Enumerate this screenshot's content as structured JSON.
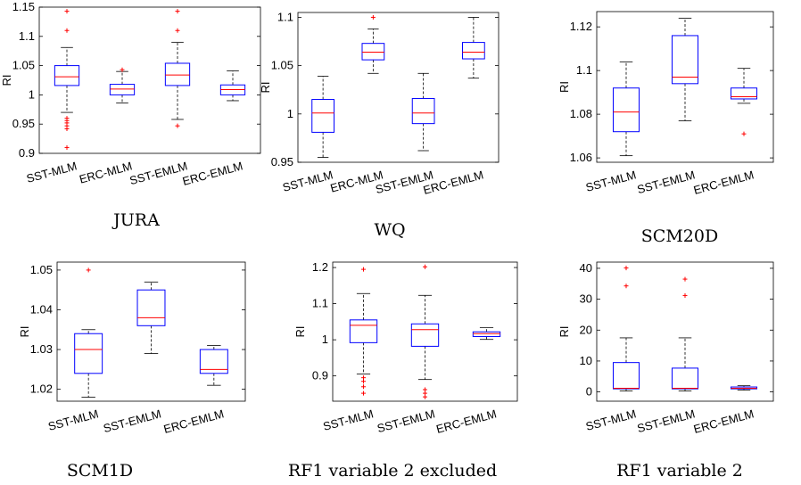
{
  "chart_data": [
    {
      "type": "box",
      "title": "JURA",
      "ylabel": "RI",
      "ylim": [
        0.9,
        1.15
      ],
      "yticks": [
        "0.9",
        "0.95",
        "1",
        "1.05",
        "1.1",
        "1.15"
      ],
      "categories": [
        "SST-MLM",
        "ERC-MLM",
        "SST-EMLM",
        "ERC-EMLM"
      ],
      "boxes": [
        {
          "lower_whisker": 0.97,
          "q1": 1.016,
          "median": 1.031,
          "q3": 1.05,
          "upper_whisker": 1.081,
          "outliers": [
            0.91,
            0.942,
            0.947,
            0.952,
            0.956,
            0.96,
            1.11,
            1.143
          ]
        },
        {
          "lower_whisker": 0.986,
          "q1": 1.0,
          "median": 1.01,
          "q3": 1.018,
          "upper_whisker": 1.04,
          "outliers": [
            1.043
          ]
        },
        {
          "lower_whisker": 0.958,
          "q1": 1.016,
          "median": 1.034,
          "q3": 1.054,
          "upper_whisker": 1.09,
          "outliers": [
            0.947,
            1.11,
            1.143
          ]
        },
        {
          "lower_whisker": 0.99,
          "q1": 1.0,
          "median": 1.009,
          "q3": 1.017,
          "upper_whisker": 1.041,
          "outliers": []
        }
      ]
    },
    {
      "type": "box",
      "title": "WQ",
      "ylabel": "RI",
      "ylim": [
        0.95,
        1.105
      ],
      "yticks": [
        "0.95",
        "1",
        "1.05",
        "1.1"
      ],
      "categories": [
        "SST-MLM",
        "ERC-MLM",
        "SST-EMLM",
        "ERC-EMLM"
      ],
      "boxes": [
        {
          "lower_whisker": 0.955,
          "q1": 0.981,
          "median": 1.001,
          "q3": 1.015,
          "upper_whisker": 1.039,
          "outliers": []
        },
        {
          "lower_whisker": 1.042,
          "q1": 1.056,
          "median": 1.064,
          "q3": 1.073,
          "upper_whisker": 1.088,
          "outliers": [
            1.1
          ]
        },
        {
          "lower_whisker": 0.962,
          "q1": 0.99,
          "median": 1.001,
          "q3": 1.016,
          "upper_whisker": 1.042,
          "outliers": []
        },
        {
          "lower_whisker": 1.037,
          "q1": 1.057,
          "median": 1.064,
          "q3": 1.074,
          "upper_whisker": 1.1,
          "outliers": []
        }
      ]
    },
    {
      "type": "box",
      "title": "SCM20D",
      "ylabel": "RI",
      "ylim": [
        1.058,
        1.127
      ],
      "yticks": [
        "1.06",
        "1.08",
        "1.1",
        "1.12"
      ],
      "categories": [
        "SST-MLM",
        "SST-EMLM",
        "ERC-EMLM"
      ],
      "boxes": [
        {
          "lower_whisker": 1.061,
          "q1": 1.072,
          "median": 1.081,
          "q3": 1.092,
          "upper_whisker": 1.104,
          "outliers": []
        },
        {
          "lower_whisker": 1.077,
          "q1": 1.094,
          "median": 1.097,
          "q3": 1.116,
          "upper_whisker": 1.124,
          "outliers": []
        },
        {
          "lower_whisker": 1.085,
          "q1": 1.087,
          "median": 1.088,
          "q3": 1.092,
          "upper_whisker": 1.101,
          "outliers": [
            1.071
          ]
        }
      ]
    },
    {
      "type": "box",
      "title": "SCM1D",
      "ylabel": "RI",
      "ylim": [
        1.017,
        1.052
      ],
      "yticks": [
        "1.02",
        "1.03",
        "1.04",
        "1.05"
      ],
      "categories": [
        "SST-MLM",
        "SST-EMLM",
        "ERC-EMLM"
      ],
      "boxes": [
        {
          "lower_whisker": 1.018,
          "q1": 1.024,
          "median": 1.03,
          "q3": 1.034,
          "upper_whisker": 1.035,
          "outliers": [
            1.05
          ]
        },
        {
          "lower_whisker": 1.029,
          "q1": 1.036,
          "median": 1.038,
          "q3": 1.045,
          "upper_whisker": 1.047,
          "outliers": []
        },
        {
          "lower_whisker": 1.021,
          "q1": 1.024,
          "median": 1.025,
          "q3": 1.03,
          "upper_whisker": 1.031,
          "outliers": []
        }
      ]
    },
    {
      "type": "box",
      "title": "RF1 variable 2 excluded",
      "ylabel": "RI",
      "ylim": [
        0.83,
        1.215
      ],
      "yticks": [
        "0.9",
        "1",
        "1.1",
        "1.2"
      ],
      "categories": [
        "SST-MLM",
        "SST-EMLM",
        "ERC-EMLM"
      ],
      "boxes": [
        {
          "lower_whisker": 0.905,
          "q1": 0.992,
          "median": 1.04,
          "q3": 1.055,
          "upper_whisker": 1.128,
          "outliers": [
            0.852,
            0.87,
            0.885,
            0.895,
            1.195
          ]
        },
        {
          "lower_whisker": 0.89,
          "q1": 0.982,
          "median": 1.028,
          "q3": 1.044,
          "upper_whisker": 1.123,
          "outliers": [
            0.842,
            0.852,
            0.862,
            1.202
          ]
        },
        {
          "lower_whisker": 1.001,
          "q1": 1.009,
          "median": 1.017,
          "q3": 1.022,
          "upper_whisker": 1.034,
          "outliers": []
        }
      ]
    },
    {
      "type": "box",
      "title": "RF1 variable 2",
      "ylabel": "RI",
      "ylim": [
        -3,
        42
      ],
      "yticks": [
        "0",
        "10",
        "20",
        "30",
        "40"
      ],
      "categories": [
        "SST-MLM",
        "SST-EMLM",
        "ERC-EMLM"
      ],
      "boxes": [
        {
          "lower_whisker": 0.3,
          "q1": 1.0,
          "median": 1.2,
          "q3": 9.5,
          "upper_whisker": 17.5,
          "outliers": [
            34.3,
            40.1
          ]
        },
        {
          "lower_whisker": 0.3,
          "q1": 1.0,
          "median": 1.2,
          "q3": 7.7,
          "upper_whisker": 17.5,
          "outliers": [
            31.2,
            36.5
          ]
        },
        {
          "lower_whisker": 0.6,
          "q1": 1.0,
          "median": 1.2,
          "q3": 1.6,
          "upper_whisker": 2.0,
          "outliers": []
        }
      ]
    }
  ],
  "colors": {
    "box": "#0000ff",
    "median": "#ff0000",
    "whisker": "#000000",
    "outlier": "#ff0000",
    "axis": "#000000"
  }
}
